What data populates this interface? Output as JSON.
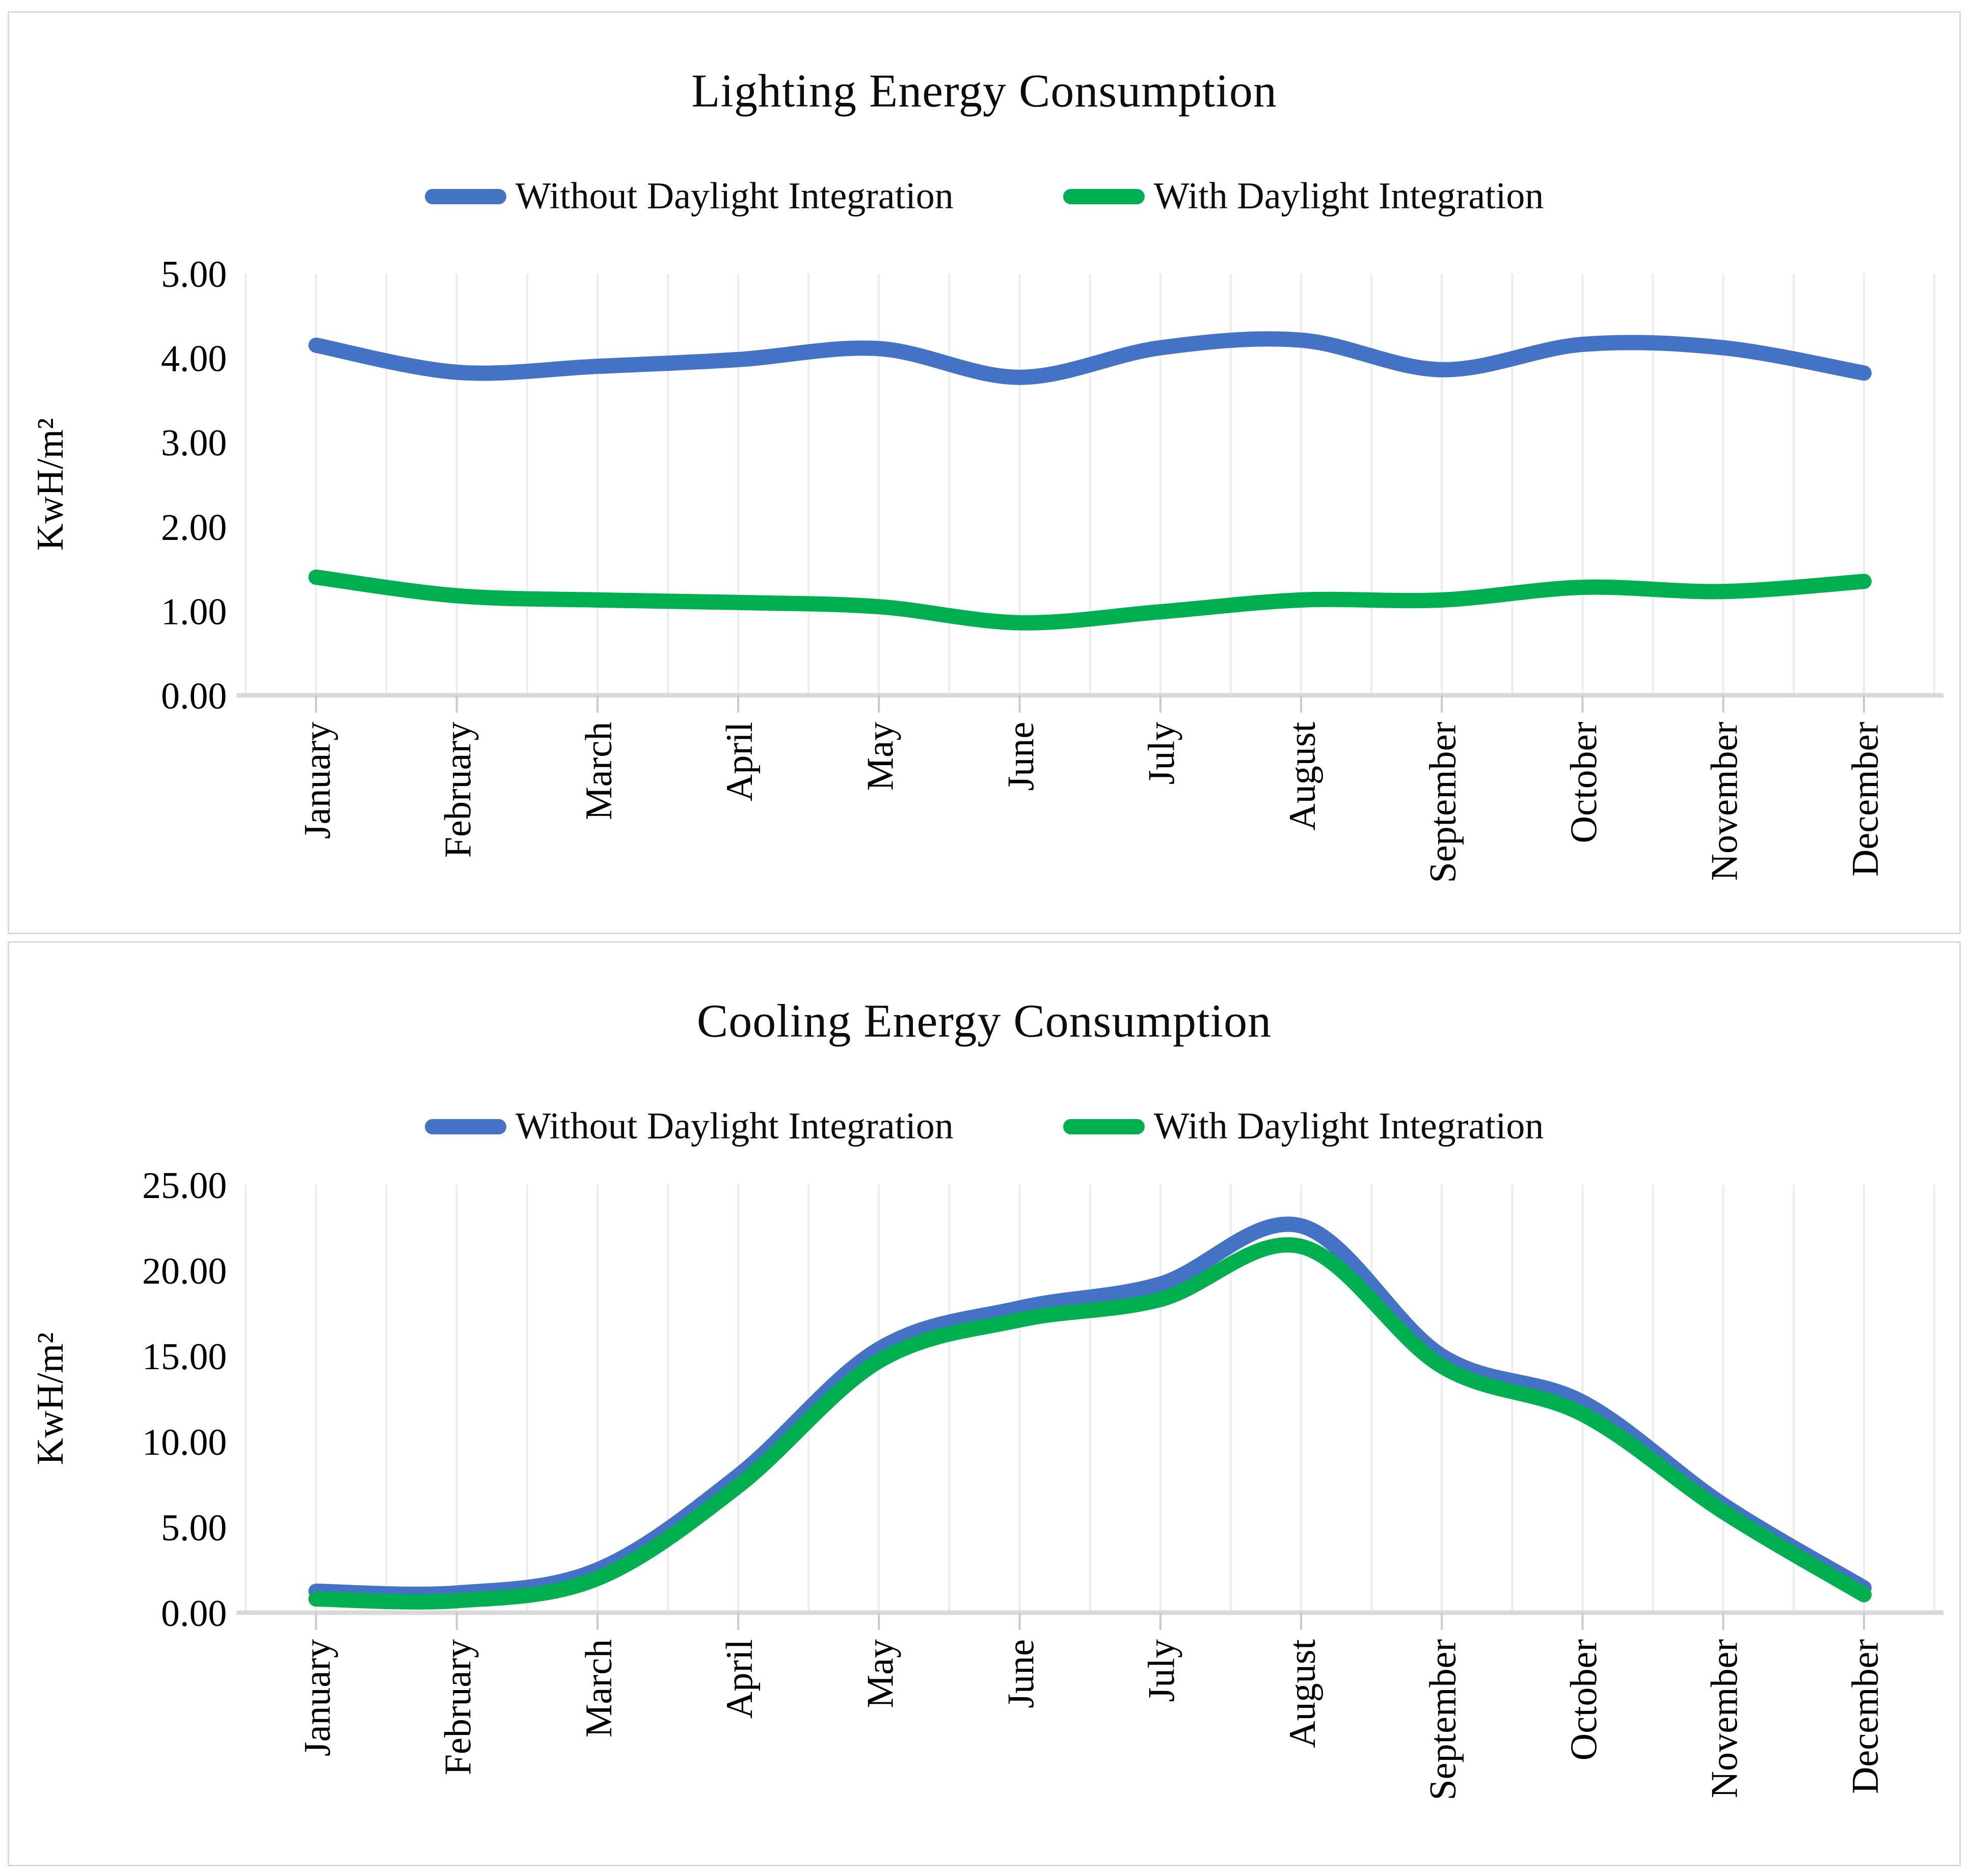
{
  "page": {
    "background_color": "#ffffff",
    "frame_border_color": "#d9d9d9",
    "gridline_color": "#ececec",
    "axis_line_color": "#d9d9d9",
    "tick_mark_color": "#c9c9c9"
  },
  "chart_data": [
    {
      "type": "line",
      "title": "Lighting Energy Consumption",
      "ylabel": "KwH/m²",
      "xlabel": "",
      "categories": [
        "January",
        "February",
        "March",
        "April",
        "May",
        "June",
        "July",
        "August",
        "September",
        "October",
        "November",
        "December"
      ],
      "series": [
        {
          "name": "Without Daylight Integration",
          "color": "#4472C4",
          "values": [
            4.15,
            3.83,
            3.9,
            3.98,
            4.11,
            3.77,
            4.12,
            4.21,
            3.86,
            4.16,
            4.12,
            3.82
          ]
        },
        {
          "name": "With Daylight Integration",
          "color": "#00B050",
          "values": [
            1.4,
            1.18,
            1.13,
            1.1,
            1.05,
            0.86,
            0.99,
            1.13,
            1.13,
            1.28,
            1.23,
            1.35
          ]
        }
      ],
      "ylim": [
        0,
        5
      ],
      "ytick_step": 1,
      "ytick_labels": [
        "0.00",
        "1.00",
        "2.00",
        "3.00",
        "4.00",
        "5.00"
      ],
      "grid": "vertical-only",
      "legend_position": "top-center",
      "line_style": "smooth"
    },
    {
      "type": "line",
      "title": "Cooling Energy Consumption",
      "ylabel": "KwH/m²",
      "xlabel": "",
      "categories": [
        "January",
        "February",
        "March",
        "April",
        "May",
        "June",
        "July",
        "August",
        "September",
        "October",
        "November",
        "December"
      ],
      "series": [
        {
          "name": "Without Daylight Integration",
          "color": "#4472C4",
          "values": [
            1.25,
            1.15,
            2.5,
            8.0,
            15.4,
            17.8,
            19.2,
            22.6,
            15.0,
            12.3,
            6.3,
            1.45
          ]
        },
        {
          "name": "With Daylight Integration",
          "color": "#00B050",
          "values": [
            0.8,
            0.7,
            2.0,
            7.4,
            14.7,
            17.1,
            18.3,
            21.4,
            14.4,
            11.6,
            5.9,
            1.05
          ]
        }
      ],
      "ylim": [
        0,
        25
      ],
      "ytick_step": 5,
      "ytick_labels": [
        "0.00",
        "5.00",
        "10.00",
        "15.00",
        "20.00",
        "25.00"
      ],
      "grid": "vertical-only",
      "legend_position": "top-center",
      "line_style": "smooth"
    }
  ]
}
